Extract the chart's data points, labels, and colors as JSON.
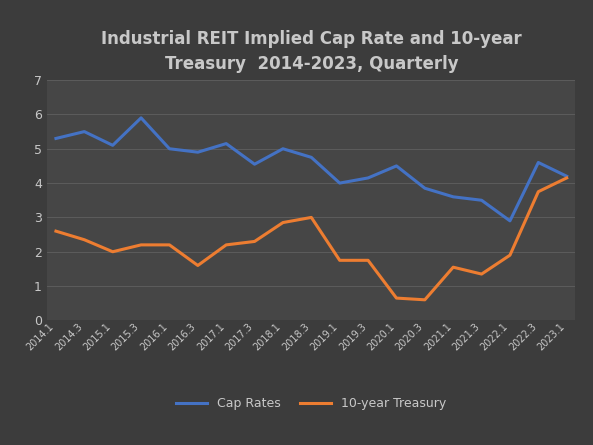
{
  "title": "Industrial REIT Implied Cap Rate and 10-year\nTreasury  2014-2023, Quarterly",
  "x_labels": [
    "2014.1",
    "2014.3",
    "2015.1",
    "2015.3",
    "2016.1",
    "2016.3",
    "2017.1",
    "2017.3",
    "2018.1",
    "2018.3",
    "2019.1",
    "2019.3",
    "2020.1",
    "2020.3",
    "2021.1",
    "2021.3",
    "2022.1",
    "2022.3",
    "2023.1"
  ],
  "cap_rates": [
    5.3,
    5.5,
    5.1,
    5.9,
    5.0,
    4.9,
    5.15,
    4.55,
    5.0,
    4.75,
    4.0,
    4.15,
    4.5,
    3.85,
    3.6,
    3.5,
    2.9,
    4.6,
    4.2
  ],
  "treasury": [
    2.6,
    2.35,
    2.0,
    2.2,
    2.2,
    1.6,
    2.2,
    2.3,
    2.85,
    3.0,
    1.75,
    1.75,
    0.65,
    0.6,
    1.55,
    1.35,
    1.9,
    3.75,
    4.15
  ],
  "cap_rates_color": "#4472C4",
  "treasury_color": "#ED7D31",
  "background_color": "#3C3C3C",
  "plot_bg_color": "#464646",
  "text_color": "#C8C8C8",
  "grid_color": "#606060",
  "ylim": [
    0,
    7
  ],
  "yticks": [
    0,
    1,
    2,
    3,
    4,
    5,
    6,
    7
  ],
  "title_fontsize": 12,
  "legend_labels": [
    "Cap Rates",
    "10-year Treasury"
  ],
  "line_width": 2.2
}
